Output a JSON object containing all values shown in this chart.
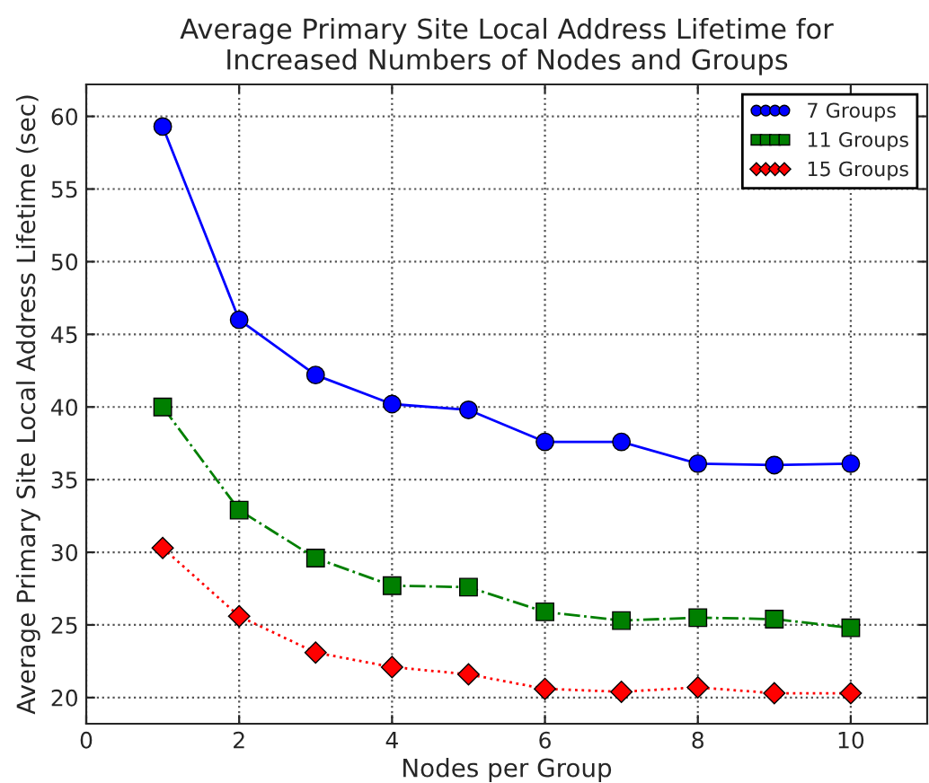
{
  "chart_data": {
    "type": "line",
    "title": "Average Primary Site Local Address Lifetime for\nIncreased Numbers of Nodes and Groups",
    "xlabel": "Nodes per Group",
    "ylabel": "Average Primary Site Local Address Lifetime (sec)",
    "x": [
      1,
      2,
      3,
      4,
      5,
      6,
      7,
      8,
      9,
      10
    ],
    "series": [
      {
        "name": "7 Groups",
        "color": "#0000ff",
        "marker": "circle",
        "line_style": "solid",
        "values": [
          59.3,
          46.0,
          42.2,
          40.2,
          39.8,
          37.6,
          37.6,
          36.1,
          36.0,
          36.1
        ]
      },
      {
        "name": "11 Groups",
        "color": "#007f00",
        "marker": "square",
        "line_style": "dashed",
        "values": [
          40.0,
          32.9,
          29.6,
          27.7,
          27.6,
          25.9,
          25.3,
          25.5,
          25.4,
          24.8
        ]
      },
      {
        "name": "15 Groups",
        "color": "#ff0000",
        "marker": "diamond",
        "line_style": "dotted",
        "values": [
          30.3,
          25.6,
          23.1,
          22.1,
          21.6,
          20.6,
          20.4,
          20.7,
          20.3,
          20.3
        ]
      }
    ],
    "xlim": [
      0,
      11
    ],
    "xticks": [
      0,
      2,
      4,
      6,
      8,
      10
    ],
    "ylim": [
      18.2,
      62.2
    ],
    "yticks": [
      20,
      25,
      30,
      35,
      40,
      45,
      50,
      55,
      60
    ],
    "grid": true,
    "legend": "top right"
  }
}
